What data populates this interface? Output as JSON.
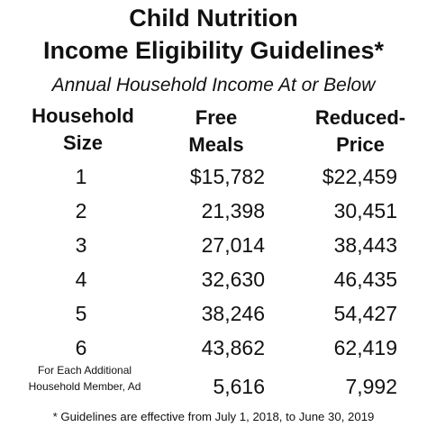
{
  "title_line1": "Child Nutrition",
  "title_line2": "Income Eligibility Guidelines*",
  "subtitle": "Annual Household Income At or Below",
  "headers": {
    "household_size": [
      "Household",
      "Size"
    ],
    "free_meals": [
      "Free",
      "Meals"
    ],
    "reduced_price": [
      "Reduced-",
      "Price"
    ]
  },
  "rows": [
    {
      "size": "1",
      "free": "$15,782",
      "reduced": "$22,459"
    },
    {
      "size": "2",
      "free": "21,398",
      "reduced": "30,451"
    },
    {
      "size": "3",
      "free": "27,014",
      "reduced": "38,443"
    },
    {
      "size": "4",
      "free": "32,630",
      "reduced": "46,435"
    },
    {
      "size": "5",
      "free": "38,246",
      "reduced": "54,427"
    },
    {
      "size": "6",
      "free": "43,862",
      "reduced": "62,419"
    }
  ],
  "additional": {
    "label_line1": "For Each Additional",
    "label_line2": "Household Member, Ad",
    "free": "5,616",
    "reduced": "7,992"
  },
  "footnote": "* Guidelines are effective from July 1, 2018, to June 30, 2019"
}
